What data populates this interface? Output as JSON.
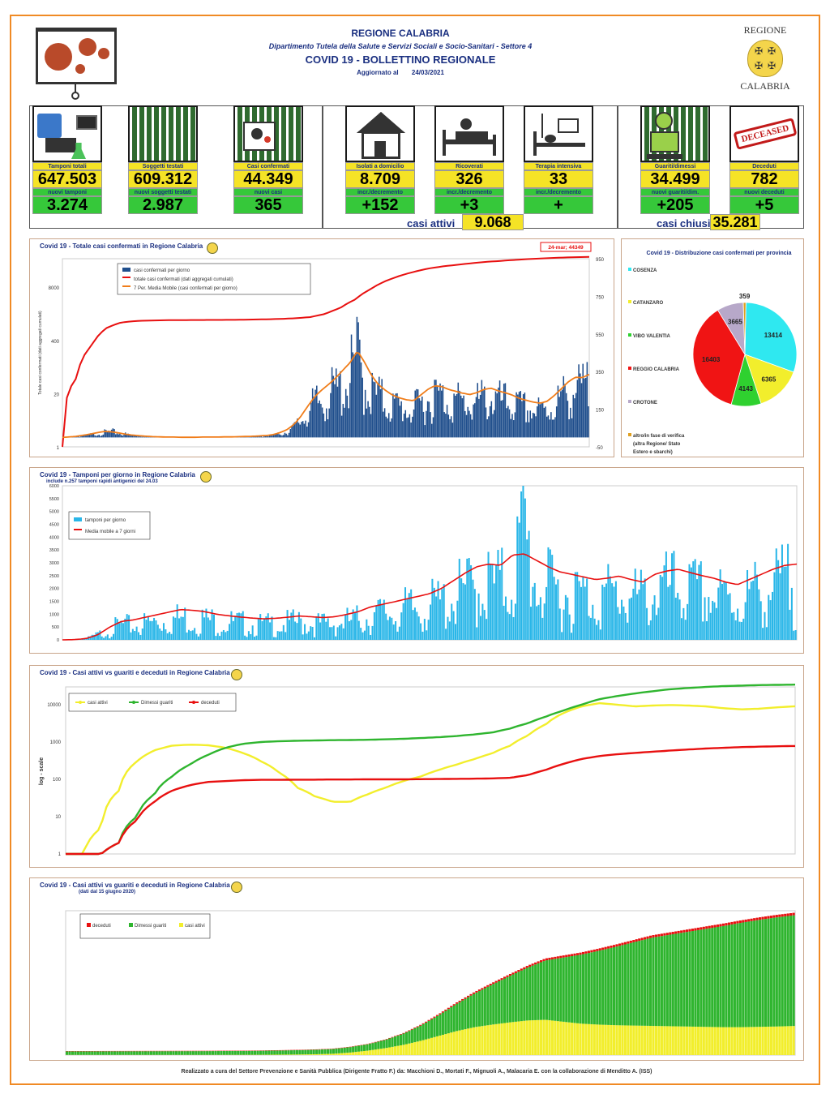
{
  "header": {
    "region": "REGIONE CALABRIA",
    "department": "Dipartimento Tutela della Salute e Servizi Sociali e Socio-Sanitari - Settore 4",
    "bulletin": "COVID 19 - BOLLETTINO REGIONALE",
    "updated_label": "Aggiornato al",
    "updated_date": "24/03/2021",
    "logo_top": "REGIONE",
    "logo_bottom": "CALABRIA"
  },
  "stats": {
    "tamponi": {
      "label": "Tamponi totali",
      "value": "647.503",
      "sub_label": "nuovi tamponi",
      "sub_value": "3.274"
    },
    "soggetti": {
      "label": "Soggetti testati",
      "value": "609.312",
      "sub_label": "nuovi soggetti testati",
      "sub_value": "2.987"
    },
    "casi": {
      "label": "Casi confermati",
      "value": "44.349",
      "sub_label": "nuovi casi",
      "sub_value": "365"
    },
    "isolati": {
      "label": "Isolati a domicilio",
      "value": "8.709",
      "sub_label": "incr./decremento",
      "sub_value": "+152"
    },
    "ricoverati": {
      "label": "Ricoverati",
      "value": "326",
      "sub_label": "incr./decremento",
      "sub_value": "+3"
    },
    "terapia": {
      "label": "Terapia intensiva",
      "value": "33",
      "sub_label": "incr./decremento",
      "sub_value": "+"
    },
    "guariti": {
      "label": "Guariti/dimessi",
      "value": "34.499",
      "sub_label": "nuovi guariti/dim.",
      "sub_value": "+205"
    },
    "deceduti": {
      "label": "Deceduti",
      "value": "782",
      "sub_label": "nuovi deceduti",
      "sub_value": "+5"
    },
    "deceased_stamp": "DECEASED",
    "casi_attivi_label": "casi attivi",
    "casi_attivi_value": "9.068",
    "casi_chiusi_label": "casi chiusi",
    "casi_chiusi_value": "35.281"
  },
  "colors": {
    "frame": "#f08a24",
    "yellow": "#f5e326",
    "green": "#36c83a",
    "title_blue": "#1a2f80",
    "bar_blue": "#1f4e8c",
    "red_line": "#e81010",
    "orange_line": "#f07d1a",
    "cyan_bar": "#29b6e8",
    "chart_green": "#2fb52f",
    "chart_yellow": "#f2ee2c"
  },
  "chart_data": [
    {
      "type": "bar",
      "title": "Covid 19 - Totale casi confermati in Regione Calabria",
      "annotation": "24-mar; 44349",
      "left_axis_label": "Totale casi confermati (dati aggregati cumulati)",
      "left_ticks": [
        "1",
        "20",
        "400",
        "8000"
      ],
      "right_ticks": [
        "-50",
        "150",
        "350",
        "550",
        "750",
        "950"
      ],
      "legend": [
        "casi confermati per giorno",
        "totale casi confermati (dati aggregati cumulati)",
        "7 Per. Media Mobile (casi confermati per giorno)"
      ],
      "ylim_right": [
        -50,
        950
      ],
      "series_daily_approx": [
        0,
        2,
        5,
        12,
        20,
        28,
        35,
        40,
        30,
        22,
        15,
        10,
        8,
        5,
        3,
        2,
        2,
        1,
        1,
        1,
        2,
        2,
        2,
        3,
        3,
        4,
        5,
        6,
        8,
        10,
        15,
        25,
        40,
        70,
        120,
        180,
        230,
        260,
        290,
        320,
        350,
        420,
        560,
        380,
        310,
        280,
        250,
        220,
        210,
        200,
        190,
        230,
        260,
        290,
        280,
        260,
        250,
        240,
        230,
        240,
        260,
        270,
        250,
        240,
        230,
        210,
        200,
        190,
        180,
        190,
        220,
        260,
        300,
        330,
        320,
        340
      ],
      "series_cumulative_approx": [
        1,
        50,
        300,
        800,
        1100,
        1200,
        1230,
        1250,
        1260,
        1265,
        1270,
        1275,
        1280,
        1300,
        1320,
        1350,
        1400,
        1500,
        1800,
        2500,
        4000,
        7000,
        11000,
        15000,
        19000,
        23000,
        26000,
        28500,
        31000,
        33500,
        35500,
        37500,
        39500,
        41000,
        42500,
        43500,
        44349
      ],
      "series_ma_approx": [
        0,
        3,
        6,
        12,
        18,
        26,
        32,
        30,
        24,
        17,
        12,
        9,
        6,
        4,
        3,
        2,
        2,
        1,
        1,
        1,
        2,
        2,
        2,
        3,
        3,
        4,
        5,
        6,
        8,
        10,
        15,
        26,
        42,
        70,
        115,
        170,
        220,
        255,
        285,
        320,
        360,
        400,
        460,
        400,
        330,
        280,
        250,
        225,
        210,
        200,
        195,
        225,
        255,
        275,
        270,
        255,
        245,
        235,
        228,
        238,
        255,
        262,
        248,
        238,
        226,
        208,
        198,
        188,
        182,
        192,
        222,
        258,
        295,
        320,
        318,
        335
      ]
    },
    {
      "type": "pie",
      "title": "Covid 19 - Distribuzione casi confermati per provincia",
      "labels": [
        "COSENZA",
        "CATANZARO",
        "VIBO VALENTIA",
        "REGGIO CALABRIA",
        "CROTONE",
        "altro/in fase di verifica (altra Regione/ Stato Estero e sbarchi)"
      ],
      "values": [
        13414,
        6365,
        4143,
        16403,
        3665,
        359
      ],
      "colors": [
        "#2fe8f0",
        "#f2ee2c",
        "#2fd12f",
        "#f01414",
        "#b7a8c9",
        "#e0a020"
      ]
    },
    {
      "type": "bar",
      "title": "Covid 19 - Tamponi per giorno in Regione Calabria",
      "subtitle": "include n.257 tamponi rapidi antigenici del 24.03",
      "legend": [
        "tamponi per giorno",
        "Media mobile a 7 giorni"
      ],
      "ylim": [
        0,
        6000
      ],
      "yticks": [
        0,
        500,
        1000,
        1500,
        2000,
        2500,
        3000,
        3500,
        4000,
        4500,
        5000,
        5500,
        6000
      ],
      "series_daily_approx": [
        0,
        20,
        80,
        300,
        600,
        800,
        750,
        900,
        1000,
        1100,
        1200,
        1150,
        1100,
        1000,
        950,
        900,
        850,
        800,
        850,
        900,
        950,
        900,
        850,
        900,
        1000,
        1100,
        1300,
        1400,
        1500,
        1600,
        1700,
        1800,
        2000,
        2300,
        2600,
        2900,
        3000,
        2900,
        3400,
        5800,
        3100,
        2800,
        2600,
        2500,
        2400,
        2300,
        2400,
        2500,
        2300,
        2200,
        2600,
        2700,
        2800,
        2600,
        2500,
        2400,
        2200,
        2100,
        2400,
        2600,
        2800,
        3000,
        3100
      ],
      "series_ma_approx": [
        0,
        10,
        50,
        200,
        500,
        720,
        780,
        880,
        980,
        1080,
        1180,
        1150,
        1100,
        1000,
        940,
        890,
        850,
        820,
        840,
        880,
        930,
        900,
        870,
        900,
        990,
        1100,
        1280,
        1380,
        1480,
        1590,
        1690,
        1800,
        2000,
        2300,
        2600,
        2850,
        2950,
        2900,
        3300,
        3350,
        3100,
        2850,
        2650,
        2550,
        2450,
        2350,
        2400,
        2480,
        2350,
        2250,
        2550,
        2680,
        2750,
        2620,
        2500,
        2400,
        2250,
        2150,
        2350,
        2550,
        2750,
        2900,
        2950
      ]
    },
    {
      "type": "line",
      "title": "Covid 19 - Casi attivi vs guariti e deceduti in Regione Calabria",
      "ylabel": "log - scale",
      "ytick_labels": [
        "1",
        "10",
        "100",
        "1000",
        "10000"
      ],
      "legend": [
        "casi attivi",
        "Dimessi guariti",
        "deceduti"
      ],
      "series": [
        {
          "name": "casi attivi",
          "values": [
            1,
            1,
            5,
            50,
            300,
            600,
            800,
            850,
            820,
            700,
            500,
            300,
            150,
            60,
            35,
            25,
            25,
            40,
            60,
            90,
            120,
            180,
            250,
            350,
            500,
            800,
            1500,
            3000,
            6000,
            9000,
            11000,
            10000,
            9000,
            9500,
            9800,
            9500,
            9000,
            8000,
            7500,
            7800,
            8500,
            9068
          ]
        },
        {
          "name": "Dimessi guariti",
          "values": [
            1,
            1,
            1,
            2,
            10,
            40,
            120,
            250,
            450,
            700,
            900,
            1000,
            1050,
            1080,
            1100,
            1120,
            1130,
            1150,
            1180,
            1220,
            1280,
            1350,
            1450,
            1600,
            1800,
            2300,
            3200,
            4800,
            7000,
            10000,
            14000,
            17000,
            20000,
            23000,
            26000,
            28000,
            30000,
            31500,
            32500,
            33500,
            34000,
            34499
          ]
        },
        {
          "name": "deceduti",
          "values": [
            1,
            1,
            1,
            2,
            8,
            25,
            50,
            70,
            85,
            90,
            95,
            97,
            97,
            98,
            98,
            99,
            99,
            100,
            100,
            100,
            101,
            102,
            103,
            104,
            106,
            110,
            130,
            180,
            260,
            350,
            420,
            470,
            510,
            550,
            590,
            630,
            670,
            700,
            730,
            750,
            770,
            782
          ]
        }
      ]
    },
    {
      "type": "area",
      "title": "Covid 19 - Casi attivi vs guariti e deceduti in Regione Calabria",
      "subtitle": "(dati dal 15 giugno 2020)",
      "legend": [
        "deceduti",
        "Dimessi guariti",
        "casi attivi"
      ],
      "series": [
        {
          "name": "casi attivi",
          "values": [
            60,
            60,
            60,
            60,
            60,
            60,
            60,
            60,
            60,
            70,
            80,
            100,
            130,
            180,
            260,
            400,
            800,
            1400,
            2200,
            3200,
            4500,
            6000,
            7500,
            8700,
            9500,
            10200,
            10800,
            11000,
            10400,
            9800,
            9500,
            9300,
            9200,
            9100,
            9000,
            8900,
            8800,
            8700,
            8700,
            8800,
            8900,
            9068
          ]
        },
        {
          "name": "Dimessi guariti",
          "values": [
            1100,
            1100,
            1120,
            1130,
            1140,
            1150,
            1160,
            1170,
            1180,
            1200,
            1220,
            1250,
            1300,
            1350,
            1400,
            1500,
            1700,
            2000,
            2600,
            3500,
            4800,
            6500,
            8500,
            10500,
            12500,
            14500,
            16500,
            18500,
            20000,
            21500,
            23000,
            24500,
            26000,
            27500,
            28500,
            29500,
            30500,
            31500,
            32500,
            33300,
            34000,
            34499
          ]
        },
        {
          "name": "deceduti",
          "values": [
            97,
            97,
            97,
            97,
            98,
            98,
            98,
            99,
            99,
            100,
            100,
            100,
            101,
            102,
            103,
            104,
            106,
            110,
            130,
            180,
            260,
            350,
            420,
            470,
            510,
            550,
            590,
            620,
            650,
            670,
            690,
            710,
            720,
            730,
            740,
            750,
            760,
            765,
            770,
            775,
            779,
            782
          ]
        }
      ]
    }
  ],
  "footer": "Realizzato a cura del Settore Prevenzione e Sanità Pubblica (Dirigente Fratto F.) da: Macchioni D., Mortati F., Mignuoli A., Malacaria E. con la collaborazione di Menditto A. (ISS)"
}
